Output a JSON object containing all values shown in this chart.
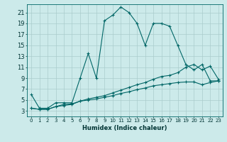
{
  "title": "",
  "xlabel": "Humidex (Indice chaleur)",
  "background_color": "#cceaea",
  "grid_color": "#aacccc",
  "line_color": "#006666",
  "xlim": [
    -0.5,
    23.5
  ],
  "ylim": [
    2,
    22.5
  ],
  "xticks": [
    0,
    1,
    2,
    3,
    4,
    5,
    6,
    7,
    8,
    9,
    10,
    11,
    12,
    13,
    14,
    15,
    16,
    17,
    18,
    19,
    20,
    21,
    22,
    23
  ],
  "yticks": [
    3,
    5,
    7,
    9,
    11,
    13,
    15,
    17,
    19,
    21
  ],
  "line1_x": [
    0,
    1,
    2,
    3,
    4,
    5,
    6,
    7,
    8,
    9,
    10,
    11,
    12,
    13,
    14,
    15,
    16,
    17,
    18,
    19,
    20,
    21,
    22,
    23
  ],
  "line1_y": [
    6,
    3.5,
    3.5,
    4.5,
    4.5,
    4.5,
    9,
    13.5,
    9,
    19.5,
    20.5,
    22,
    21,
    19,
    15,
    19,
    19,
    18.5,
    15,
    11.5,
    10.5,
    11.5,
    8.5,
    8.5
  ],
  "line2_x": [
    0,
    1,
    2,
    3,
    4,
    5,
    6,
    7,
    8,
    9,
    10,
    11,
    12,
    13,
    14,
    15,
    16,
    17,
    18,
    19,
    20,
    21,
    22,
    23
  ],
  "line2_y": [
    3.5,
    3.3,
    3.3,
    3.8,
    4.2,
    4.3,
    4.8,
    5.2,
    5.5,
    5.8,
    6.3,
    6.8,
    7.3,
    7.8,
    8.2,
    8.8,
    9.3,
    9.5,
    10.0,
    11.0,
    11.5,
    10.5,
    11.2,
    8.8
  ],
  "line3_x": [
    0,
    1,
    2,
    3,
    4,
    5,
    6,
    7,
    8,
    9,
    10,
    11,
    12,
    13,
    14,
    15,
    16,
    17,
    18,
    19,
    20,
    21,
    22,
    23
  ],
  "line3_y": [
    3.5,
    3.3,
    3.3,
    3.8,
    4.0,
    4.2,
    4.8,
    5.0,
    5.2,
    5.5,
    5.8,
    6.2,
    6.5,
    6.9,
    7.2,
    7.6,
    7.8,
    8.0,
    8.2,
    8.3,
    8.3,
    7.8,
    8.2,
    8.5
  ]
}
